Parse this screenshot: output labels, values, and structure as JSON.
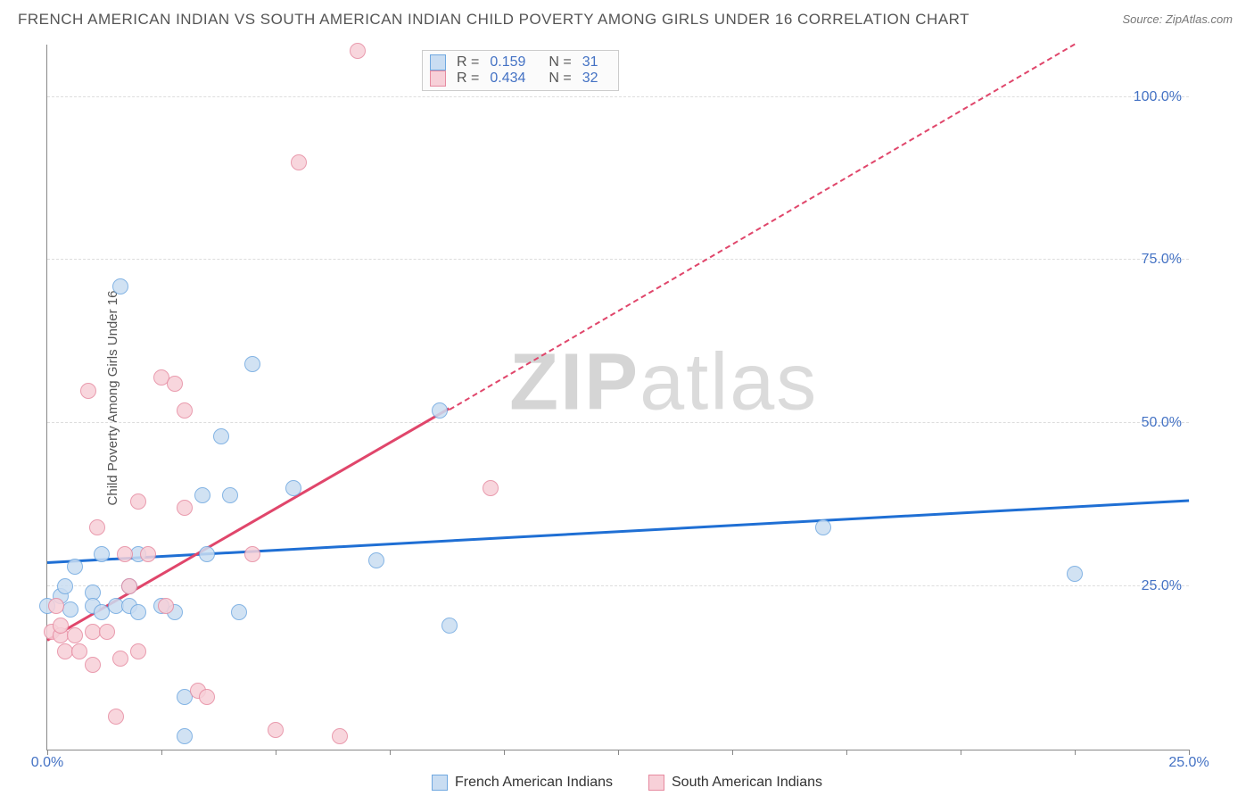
{
  "title": "FRENCH AMERICAN INDIAN VS SOUTH AMERICAN INDIAN CHILD POVERTY AMONG GIRLS UNDER 16 CORRELATION CHART",
  "source": "Source: ZipAtlas.com",
  "ylabel": "Child Poverty Among Girls Under 16",
  "watermark_zip": "ZIP",
  "watermark_atlas": "atlas",
  "chart": {
    "type": "scatter",
    "xlim": [
      0,
      25
    ],
    "ylim": [
      0,
      108
    ],
    "yticks": [
      25,
      50,
      75,
      100
    ],
    "ytick_labels": [
      "25.0%",
      "50.0%",
      "75.0%",
      "100.0%"
    ],
    "xticks": [
      0,
      2.5,
      5,
      7.5,
      10,
      12.5,
      15,
      17.5,
      20,
      22.5,
      25
    ],
    "xtick_labels": {
      "0": "0.0%",
      "25": "25.0%"
    },
    "background_color": "#ffffff",
    "grid_color": "#dddddd",
    "marker_radius": 9,
    "marker_stroke": 1.5,
    "series": [
      {
        "name": "French American Indians",
        "fill": "#c9ddf2",
        "stroke": "#6fa8e0",
        "line_color": "#1f6fd4",
        "R": "0.159",
        "N": "31",
        "trend": {
          "x1": 0,
          "y1": 28.5,
          "x2": 25,
          "y2": 38.0
        },
        "points": [
          [
            0.0,
            22
          ],
          [
            0.3,
            23.5
          ],
          [
            0.4,
            25
          ],
          [
            0.5,
            21.5
          ],
          [
            0.6,
            28
          ],
          [
            1.0,
            24
          ],
          [
            1.0,
            22
          ],
          [
            1.2,
            21
          ],
          [
            1.2,
            30
          ],
          [
            1.5,
            22
          ],
          [
            1.6,
            71
          ],
          [
            1.8,
            22
          ],
          [
            1.8,
            25
          ],
          [
            2.0,
            21
          ],
          [
            2.0,
            30
          ],
          [
            2.5,
            22
          ],
          [
            2.8,
            21
          ],
          [
            3.0,
            8
          ],
          [
            3.0,
            2
          ],
          [
            3.4,
            39
          ],
          [
            3.5,
            30
          ],
          [
            3.8,
            48
          ],
          [
            4.0,
            39
          ],
          [
            4.2,
            21
          ],
          [
            4.5,
            59
          ],
          [
            5.4,
            40
          ],
          [
            7.2,
            29
          ],
          [
            8.6,
            52
          ],
          [
            8.8,
            19
          ],
          [
            17.0,
            34
          ],
          [
            22.5,
            27
          ]
        ]
      },
      {
        "name": "South American Indians",
        "fill": "#f7d0d8",
        "stroke": "#e68aa0",
        "line_color": "#e0466b",
        "R": "0.434",
        "N": "32",
        "trend": {
          "x1": 0,
          "y1": 16.5,
          "x2": 8.8,
          "y2": 52.0
        },
        "trend_dash": {
          "x1": 8.8,
          "y1": 52.0,
          "x2": 22.5,
          "y2": 108.0
        },
        "points": [
          [
            0.1,
            18
          ],
          [
            0.2,
            22
          ],
          [
            0.3,
            17.5
          ],
          [
            0.3,
            19
          ],
          [
            0.4,
            15
          ],
          [
            0.6,
            17.5
          ],
          [
            0.7,
            15
          ],
          [
            0.9,
            55
          ],
          [
            1.0,
            13
          ],
          [
            1.0,
            18
          ],
          [
            1.1,
            34
          ],
          [
            1.3,
            18
          ],
          [
            1.5,
            5
          ],
          [
            1.6,
            14
          ],
          [
            1.7,
            30
          ],
          [
            1.8,
            25
          ],
          [
            2.0,
            38
          ],
          [
            2.0,
            15
          ],
          [
            2.2,
            30
          ],
          [
            2.5,
            57
          ],
          [
            2.6,
            22
          ],
          [
            2.8,
            56
          ],
          [
            3.0,
            37
          ],
          [
            3.0,
            52
          ],
          [
            3.3,
            9
          ],
          [
            3.5,
            8
          ],
          [
            4.5,
            30
          ],
          [
            5.0,
            3
          ],
          [
            5.5,
            90
          ],
          [
            6.4,
            2
          ],
          [
            6.8,
            107
          ],
          [
            9.7,
            40
          ]
        ]
      }
    ]
  },
  "legend_bottom": [
    {
      "label": "French American Indians",
      "fill": "#c9ddf2",
      "stroke": "#6fa8e0"
    },
    {
      "label": "South American Indians",
      "fill": "#f7d0d8",
      "stroke": "#e68aa0"
    }
  ]
}
